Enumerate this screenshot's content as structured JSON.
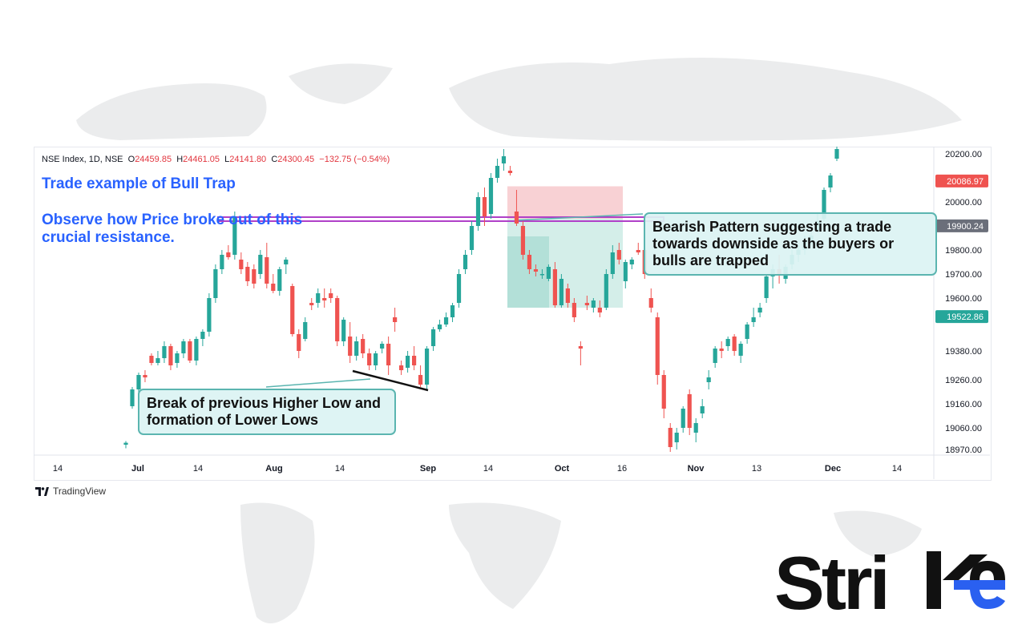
{
  "header": {
    "symbol": "NSE Index, 1D, NSE",
    "open_label": "O",
    "open": "24459.85",
    "high_label": "H",
    "high": "24461.05",
    "low_label": "L",
    "low": "24141.80",
    "close_label": "C",
    "close": "24300.45",
    "change": "−132.75 (−0.54%)"
  },
  "annotations": {
    "title": "Trade example of Bull Trap",
    "observe": "Observe how Price broke out of this crucial resistance.",
    "bearish": "Bearish Pattern suggesting a trade towards downside as the buyers or bulls are trapped",
    "break": "Break of previous Higher Low and formation of Lower Lows"
  },
  "footer": {
    "tradingview": "TradingView"
  },
  "brand": {
    "logo_text": "Strike",
    "accent": "#2a60f0"
  },
  "colors": {
    "up": "#26a69a",
    "down": "#ef5350",
    "resistance": "#b040c8"
  },
  "chart_data": {
    "type": "candlestick",
    "y_axis": {
      "ticks": [
        "20200.00",
        "20000.00",
        "19800.00",
        "19700.00",
        "19600.00",
        "19380.00",
        "19260.00",
        "19160.00",
        "19060.00",
        "18970.00"
      ],
      "badges": [
        {
          "label": "20086.97",
          "color": "#ef5350"
        },
        {
          "label": "19900.24",
          "color": "#6b6f7a"
        },
        {
          "label": "19522.86",
          "color": "#26a69a"
        }
      ]
    },
    "x_axis": {
      "ticks": [
        "14",
        "Jul",
        "14",
        "Aug",
        "14",
        "Sep",
        "14",
        "Oct",
        "16",
        "Nov",
        "13",
        "Dec",
        "14"
      ]
    },
    "resistance_level": 19930,
    "position_tool": {
      "entry": 19930,
      "stop": 20065,
      "target": 19560,
      "type": "short"
    },
    "candles": [
      [
        18990,
        19005,
        18975,
        18998
      ],
      [
        19150,
        19230,
        19140,
        19220
      ],
      [
        19220,
        19290,
        19200,
        19280
      ],
      [
        19280,
        19300,
        19250,
        19270
      ],
      [
        19360,
        19370,
        19320,
        19330
      ],
      [
        19330,
        19380,
        19320,
        19350
      ],
      [
        19350,
        19420,
        19330,
        19400
      ],
      [
        19400,
        19410,
        19300,
        19320
      ],
      [
        19330,
        19380,
        19310,
        19370
      ],
      [
        19370,
        19430,
        19350,
        19420
      ],
      [
        19420,
        19430,
        19330,
        19340
      ],
      [
        19340,
        19440,
        19320,
        19430
      ],
      [
        19430,
        19470,
        19400,
        19460
      ],
      [
        19460,
        19620,
        19440,
        19600
      ],
      [
        19600,
        19740,
        19580,
        19720
      ],
      [
        19720,
        19800,
        19700,
        19780
      ],
      [
        19790,
        19820,
        19760,
        19770
      ],
      [
        19780,
        19960,
        19760,
        19940
      ],
      [
        19760,
        19790,
        19700,
        19720
      ],
      [
        19730,
        19750,
        19650,
        19670
      ],
      [
        19720,
        19740,
        19640,
        19660
      ],
      [
        19700,
        19800,
        19680,
        19780
      ],
      [
        19770,
        19830,
        19640,
        19660
      ],
      [
        19660,
        19700,
        19620,
        19630
      ],
      [
        19630,
        19730,
        19610,
        19720
      ],
      [
        19740,
        19770,
        19700,
        19760
      ],
      [
        19650,
        19660,
        19440,
        19450
      ],
      [
        19450,
        19470,
        19350,
        19380
      ],
      [
        19430,
        19520,
        19420,
        19500
      ],
      [
        19580,
        19600,
        19550,
        19570
      ],
      [
        19580,
        19640,
        19560,
        19620
      ],
      [
        19600,
        19640,
        19560,
        19590
      ],
      [
        19620,
        19640,
        19580,
        19600
      ],
      [
        19600,
        19610,
        19400,
        19420
      ],
      [
        19420,
        19520,
        19400,
        19510
      ],
      [
        19440,
        19500,
        19330,
        19360
      ],
      [
        19360,
        19440,
        19340,
        19420
      ],
      [
        19430,
        19450,
        19350,
        19370
      ],
      [
        19370,
        19390,
        19300,
        19320
      ],
      [
        19320,
        19380,
        19300,
        19370
      ],
      [
        19390,
        19420,
        19370,
        19410
      ],
      [
        19410,
        19440,
        19280,
        19320
      ],
      [
        19520,
        19560,
        19460,
        19500
      ],
      [
        19320,
        19340,
        19280,
        19300
      ],
      [
        19310,
        19380,
        19290,
        19360
      ],
      [
        19360,
        19400,
        19300,
        19320
      ],
      [
        19280,
        19320,
        19230,
        19240
      ],
      [
        19240,
        19400,
        19220,
        19390
      ],
      [
        19400,
        19480,
        19380,
        19470
      ],
      [
        19470,
        19510,
        19460,
        19490
      ],
      [
        19490,
        19540,
        19480,
        19520
      ],
      [
        19520,
        19580,
        19500,
        19570
      ],
      [
        19580,
        19720,
        19560,
        19700
      ],
      [
        19720,
        19800,
        19700,
        19780
      ],
      [
        19800,
        19920,
        19780,
        19900
      ],
      [
        19900,
        20040,
        19880,
        20020
      ],
      [
        20020,
        20060,
        19900,
        19940
      ],
      [
        19950,
        20120,
        19930,
        20100
      ],
      [
        20100,
        20180,
        20080,
        20150
      ],
      [
        20160,
        20220,
        20130,
        20190
      ],
      [
        20130,
        20150,
        20110,
        20120
      ],
      [
        19960,
        20050,
        19900,
        19910
      ],
      [
        19900,
        19920,
        19760,
        19780
      ],
      [
        19780,
        19800,
        19700,
        19720
      ],
      [
        19720,
        19740,
        19690,
        19710
      ],
      [
        19700,
        19720,
        19680,
        19700
      ],
      [
        19680,
        19740,
        19670,
        19730
      ],
      [
        19720,
        19750,
        19560,
        19570
      ],
      [
        19570,
        19700,
        19560,
        19680
      ],
      [
        19640,
        19660,
        19560,
        19580
      ],
      [
        19580,
        19600,
        19500,
        19520
      ],
      [
        19400,
        19420,
        19320,
        19390
      ],
      [
        19580,
        19610,
        19550,
        19570
      ],
      [
        19560,
        19600,
        19540,
        19590
      ],
      [
        19560,
        19590,
        19520,
        19540
      ],
      [
        19560,
        19720,
        19550,
        19700
      ],
      [
        19700,
        19820,
        19680,
        19790
      ],
      [
        19800,
        19830,
        19740,
        19760
      ],
      [
        19670,
        19760,
        19640,
        19750
      ],
      [
        19740,
        19770,
        19720,
        19760
      ],
      [
        19800,
        19830,
        19780,
        19790
      ],
      [
        19800,
        19810,
        19680,
        19700
      ],
      [
        19600,
        19640,
        19540,
        19560
      ],
      [
        19520,
        19540,
        19240,
        19280
      ],
      [
        19280,
        19300,
        19100,
        19140
      ],
      [
        19060,
        19080,
        18960,
        18980
      ],
      [
        19000,
        19060,
        18970,
        19040
      ],
      [
        19060,
        19150,
        19040,
        19140
      ],
      [
        19200,
        19220,
        19030,
        19060
      ],
      [
        19040,
        19100,
        19000,
        19080
      ],
      [
        19120,
        19180,
        19100,
        19150
      ],
      [
        19250,
        19300,
        19220,
        19270
      ],
      [
        19330,
        19400,
        19310,
        19390
      ],
      [
        19390,
        19420,
        19350,
        19380
      ],
      [
        19400,
        19440,
        19380,
        19430
      ],
      [
        19440,
        19450,
        19360,
        19380
      ],
      [
        19360,
        19420,
        19330,
        19410
      ],
      [
        19430,
        19500,
        19410,
        19490
      ],
      [
        19500,
        19560,
        19480,
        19520
      ],
      [
        19540,
        19580,
        19520,
        19560
      ],
      [
        19600,
        19700,
        19580,
        19690
      ],
      [
        19690,
        19740,
        19640,
        19720
      ],
      [
        19720,
        19780,
        19660,
        19700
      ],
      [
        19680,
        19740,
        19660,
        19730
      ],
      [
        19740,
        19800,
        19720,
        19780
      ],
      [
        19780,
        19820,
        19750,
        19800
      ],
      [
        19800,
        19860,
        19780,
        19840
      ],
      [
        19840,
        19880,
        19820,
        19860
      ],
      [
        19880,
        19950,
        19870,
        19920
      ],
      [
        19930,
        20060,
        19920,
        20050
      ],
      [
        20060,
        20120,
        20040,
        20110
      ],
      [
        20180,
        20230,
        20170,
        20220
      ]
    ]
  }
}
